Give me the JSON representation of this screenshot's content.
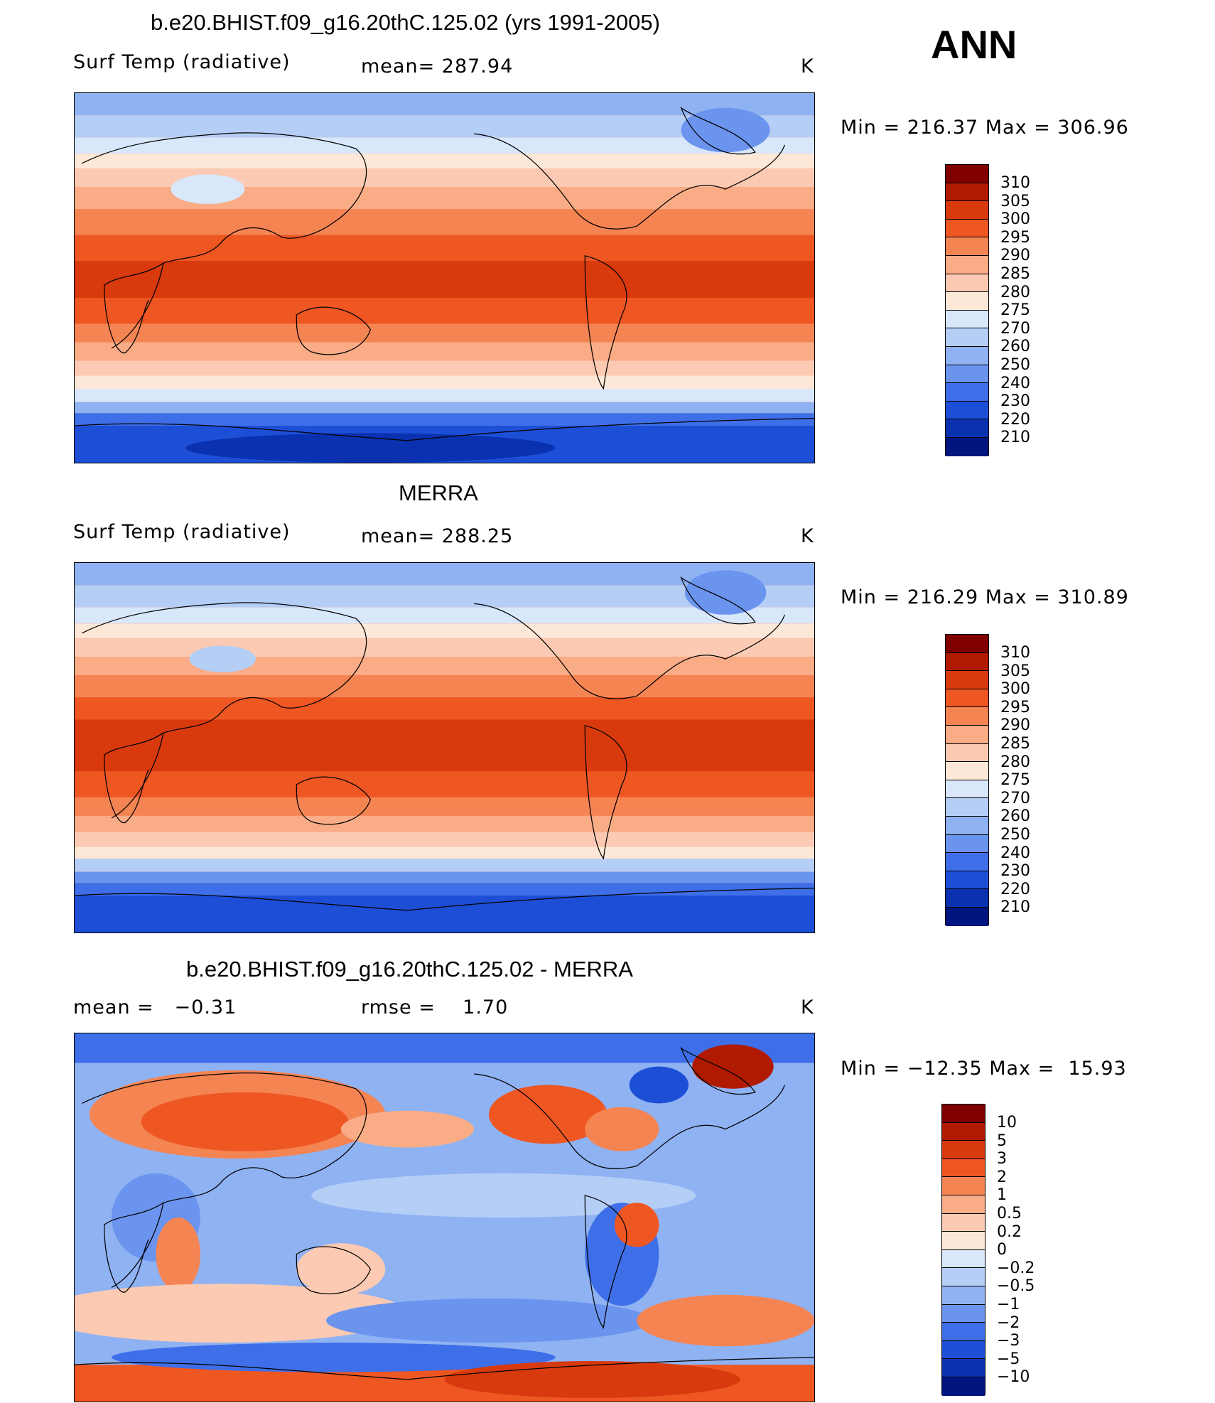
{
  "season_label": "ANN",
  "units": "K",
  "panels": [
    {
      "id": "model",
      "title": "b.e20.BHIST.f09_g16.20thC.125.02 (yrs 1991-2005)",
      "left_label": "Surf Temp (radiative)",
      "center_label": "mean= 287.94",
      "right_label": "K",
      "minmax": "Min = 216.37 Max = 306.96",
      "colorbar_labels": [
        "310",
        "305",
        "300",
        "295",
        "290",
        "285",
        "280",
        "275",
        "270",
        "260",
        "250",
        "240",
        "230",
        "220",
        "210"
      ]
    },
    {
      "id": "obs",
      "title": "MERRA",
      "left_label": "Surf Temp (radiative)",
      "center_label": "mean= 288.25",
      "right_label": "K",
      "minmax": "Min = 216.29 Max = 310.89",
      "colorbar_labels": [
        "310",
        "305",
        "300",
        "295",
        "290",
        "285",
        "280",
        "275",
        "270",
        "260",
        "250",
        "240",
        "230",
        "220",
        "210"
      ]
    },
    {
      "id": "diff",
      "title": "b.e20.BHIST.f09_g16.20thC.125.02 - MERRA",
      "left_label": "mean =   −0.31",
      "center_label": "rmse =    1.70",
      "right_label": "K",
      "minmax": "Min = −12.35 Max =  15.93",
      "colorbar_labels": [
        "10",
        "5",
        "3",
        "2",
        "1",
        "0.5",
        "0.2",
        "0",
        "−0.2",
        "−0.5",
        "−1",
        "−2",
        "−3",
        "−5",
        "−10"
      ]
    }
  ],
  "colors": {
    "abs_scale": [
      "#800000",
      "#b01a00",
      "#d83a0e",
      "#ee5622",
      "#f58453",
      "#f9ac86",
      "#fccab2",
      "#fde8d8",
      "#d8e7fa",
      "#b5cef6",
      "#8fb2f3",
      "#6a94ee",
      "#3f6fe8",
      "#1d4fd6",
      "#0a32b0",
      "#001580"
    ],
    "diff_scale": [
      "#800000",
      "#b01a00",
      "#d83a0e",
      "#ee5622",
      "#f58453",
      "#f9ac86",
      "#fccab2",
      "#fde8d8",
      "#d8e7fa",
      "#b5cef6",
      "#8fb2f3",
      "#6a94ee",
      "#3f6fe8",
      "#1d4fd6",
      "#0a32b0",
      "#001580"
    ]
  }
}
